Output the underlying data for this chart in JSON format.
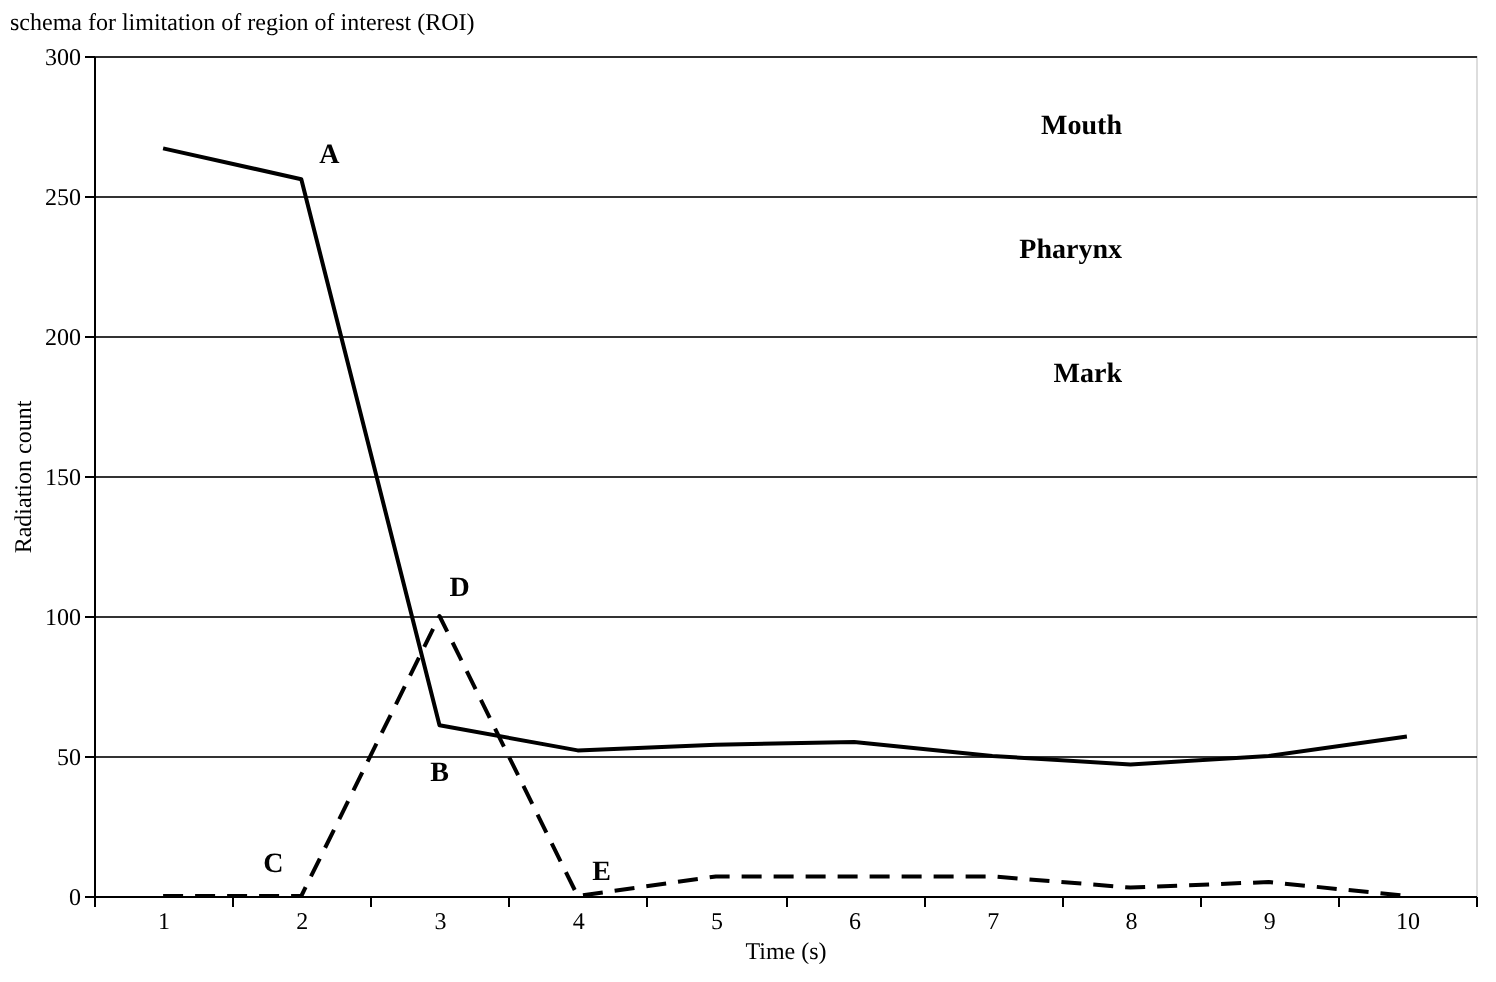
{
  "chart_data": {
    "type": "line",
    "title": "schema for limitation of region of interest (ROI)",
    "xlabel": "Time (s)",
    "ylabel": "Radiation count",
    "categories": [
      "1",
      "2",
      "3",
      "4",
      "5",
      "6",
      "7",
      "8",
      "9",
      "10"
    ],
    "series": [
      {
        "color": "#000000",
        "line_style": "solid",
        "values": [
          267,
          256,
          61,
          52,
          54,
          55,
          50,
          47,
          50,
          57
        ]
      },
      {
        "color": "#000000",
        "line_style": "dashed",
        "values": [
          0,
          0,
          100,
          0,
          7,
          7,
          7,
          3,
          5,
          0
        ]
      }
    ],
    "ylim": [
      0,
      300
    ],
    "yticks": [
      0,
      50,
      100,
      150,
      200,
      250,
      300
    ],
    "grid": "y",
    "marker": "none",
    "annotations": [
      {
        "text": "A",
        "x": "2",
        "y": 256
      },
      {
        "text": "B",
        "x": "3",
        "y": 61
      },
      {
        "text": "C",
        "x": "2",
        "y": 0
      },
      {
        "text": "D",
        "x": "3",
        "y": 100
      },
      {
        "text": "E",
        "x": "4",
        "y": 0
      },
      "Mouth",
      "Pharynx",
      "Mark"
    ]
  }
}
